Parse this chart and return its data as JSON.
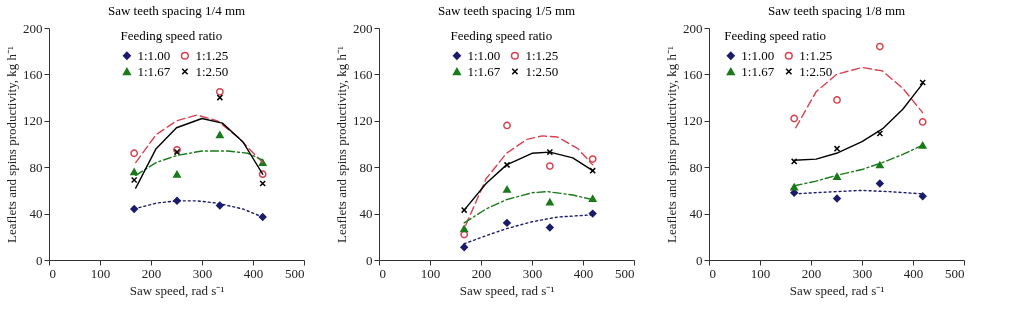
{
  "chart_data": [
    {
      "type": "scatter",
      "title": "Saw teeth spacing 1/4 mm",
      "xlabel": "Saw speed, rad s⁻¹",
      "ylabel": "Leaflets and spins productivity, kg h⁻¹",
      "legend_title": "Feeding speed ratio",
      "legend": "top",
      "grid": false,
      "xlim": [
        0,
        500
      ],
      "xticks": [
        0,
        100,
        200,
        300,
        400,
        500
      ],
      "ylim": [
        0,
        200
      ],
      "yticks": [
        0,
        40,
        80,
        120,
        160,
        200
      ],
      "x": [
        167,
        251,
        335,
        419
      ],
      "series": [
        {
          "name": "1:1.00",
          "color": "#1b1b6b",
          "marker": "diamond",
          "values": [
            44,
            51,
            47,
            37
          ]
        },
        {
          "name": "1:1.25",
          "color": "#d9414f",
          "marker": "circle",
          "values": [
            92,
            95,
            145,
            74
          ]
        },
        {
          "name": "1:1.67",
          "color": "#1a7a1a",
          "marker": "triangle",
          "values": [
            76,
            74,
            108,
            84
          ]
        },
        {
          "name": "1:2.50",
          "color": "#000000",
          "marker": "cross",
          "values": [
            69,
            93,
            140,
            66
          ]
        },
        {
          "type": "line",
          "color": "#1b1b6b",
          "line_style": "dotted",
          "x": [
            167,
            210,
            250,
            290,
            330,
            380,
            419
          ],
          "values": [
            44,
            49,
            51,
            51,
            49,
            44,
            37
          ]
        },
        {
          "type": "line",
          "color": "#d9414f",
          "line_style": "dashed",
          "x": [
            170,
            210,
            250,
            290,
            330,
            370,
            419
          ],
          "values": [
            84,
            108,
            120,
            125,
            120,
            106,
            84
          ]
        },
        {
          "type": "line",
          "color": "#1a7a1a",
          "line_style": "dashdot",
          "x": [
            170,
            210,
            250,
            300,
            350,
            390,
            419
          ],
          "values": [
            73,
            84,
            90,
            94,
            94,
            92,
            86
          ]
        },
        {
          "type": "line",
          "color": "#000000",
          "line_style": "solid",
          "x": [
            170,
            210,
            250,
            300,
            340,
            380,
            419
          ],
          "values": [
            62,
            96,
            114,
            122,
            118,
            102,
            74
          ]
        }
      ]
    },
    {
      "type": "scatter",
      "title": "Saw teeth spacing 1/5 mm",
      "xlabel": "Saw speed, rad s⁻¹",
      "ylabel": "Leaflets and spins productivity, kg h⁻¹",
      "legend_title": "Feeding speed ratio",
      "legend": "top",
      "grid": false,
      "xlim": [
        0,
        500
      ],
      "xticks": [
        0,
        100,
        200,
        300,
        400,
        500
      ],
      "ylim": [
        0,
        200
      ],
      "yticks": [
        0,
        40,
        80,
        120,
        160,
        200
      ],
      "x": [
        167,
        251,
        335,
        419
      ],
      "series": [
        {
          "name": "1:1.00",
          "color": "#1b1b6b",
          "marker": "diamond",
          "values": [
            11,
            32,
            28,
            40
          ]
        },
        {
          "name": "1:1.25",
          "color": "#d9414f",
          "marker": "circle",
          "values": [
            22,
            116,
            81,
            87
          ]
        },
        {
          "name": "1:1.67",
          "color": "#1a7a1a",
          "marker": "triangle",
          "values": [
            27,
            61,
            50,
            53
          ]
        },
        {
          "name": "1:2.50",
          "color": "#000000",
          "marker": "cross",
          "values": [
            43,
            82,
            93,
            77
          ]
        },
        {
          "type": "line",
          "color": "#1b1b6b",
          "line_style": "dotted",
          "x": [
            167,
            210,
            250,
            300,
            350,
            419
          ],
          "values": [
            14,
            21,
            27,
            33,
            37,
            39
          ]
        },
        {
          "type": "line",
          "color": "#d9414f",
          "line_style": "dashed",
          "x": [
            170,
            210,
            250,
            290,
            320,
            350,
            390,
            419
          ],
          "values": [
            30,
            70,
            92,
            104,
            107,
            106,
            96,
            82
          ]
        },
        {
          "type": "line",
          "color": "#1a7a1a",
          "line_style": "dashdot",
          "x": [
            167,
            210,
            250,
            300,
            330,
            380,
            419
          ],
          "values": [
            32,
            44,
            52,
            58,
            59,
            56,
            52
          ]
        },
        {
          "type": "line",
          "color": "#000000",
          "line_style": "solid",
          "x": [
            167,
            210,
            250,
            300,
            335,
            380,
            419
          ],
          "values": [
            43,
            66,
            82,
            92,
            93,
            88,
            77
          ]
        }
      ]
    },
    {
      "type": "scatter",
      "title": "Saw teeth spacing 1/8 mm",
      "xlabel": "Saw speed, rad s⁻¹",
      "ylabel": "Leaflets and spins productivity, kg h⁻¹",
      "legend_title": "Feeding speed ratio",
      "legend": "top left",
      "grid": false,
      "xlim": [
        0,
        500
      ],
      "xticks": [
        0,
        100,
        200,
        300,
        400,
        500
      ],
      "ylim": [
        0,
        200
      ],
      "yticks": [
        0,
        40,
        80,
        120,
        160,
        200
      ],
      "x": [
        167,
        251,
        335,
        419
      ],
      "series": [
        {
          "name": "1:1.00",
          "color": "#1b1b6b",
          "marker": "diamond",
          "values": [
            58,
            53,
            66,
            55
          ]
        },
        {
          "name": "1:1.25",
          "color": "#d9414f",
          "marker": "circle",
          "values": [
            122,
            138,
            184,
            119
          ]
        },
        {
          "name": "1:1.67",
          "color": "#1a7a1a",
          "marker": "triangle",
          "values": [
            63,
            72,
            82,
            99
          ]
        },
        {
          "name": "1:2.50",
          "color": "#000000",
          "marker": "cross",
          "values": [
            85,
            96,
            109,
            153
          ]
        },
        {
          "type": "line",
          "color": "#1b1b6b",
          "line_style": "dotted",
          "x": [
            167,
            250,
            300,
            350,
            419
          ],
          "values": [
            57,
            59,
            60,
            59,
            57
          ]
        },
        {
          "type": "line",
          "color": "#d9414f",
          "line_style": "dashed",
          "x": [
            170,
            210,
            250,
            300,
            340,
            380,
            419
          ],
          "values": [
            114,
            145,
            160,
            166,
            163,
            148,
            127
          ]
        },
        {
          "type": "line",
          "color": "#1a7a1a",
          "line_style": "dashdot",
          "x": [
            167,
            210,
            250,
            300,
            340,
            380,
            419
          ],
          "values": [
            64,
            68,
            73,
            78,
            84,
            91,
            99
          ]
        },
        {
          "type": "line",
          "color": "#000000",
          "line_style": "solid",
          "x": [
            167,
            210,
            250,
            300,
            340,
            380,
            419
          ],
          "values": [
            86,
            87,
            92,
            102,
            113,
            130,
            152
          ]
        }
      ]
    }
  ]
}
